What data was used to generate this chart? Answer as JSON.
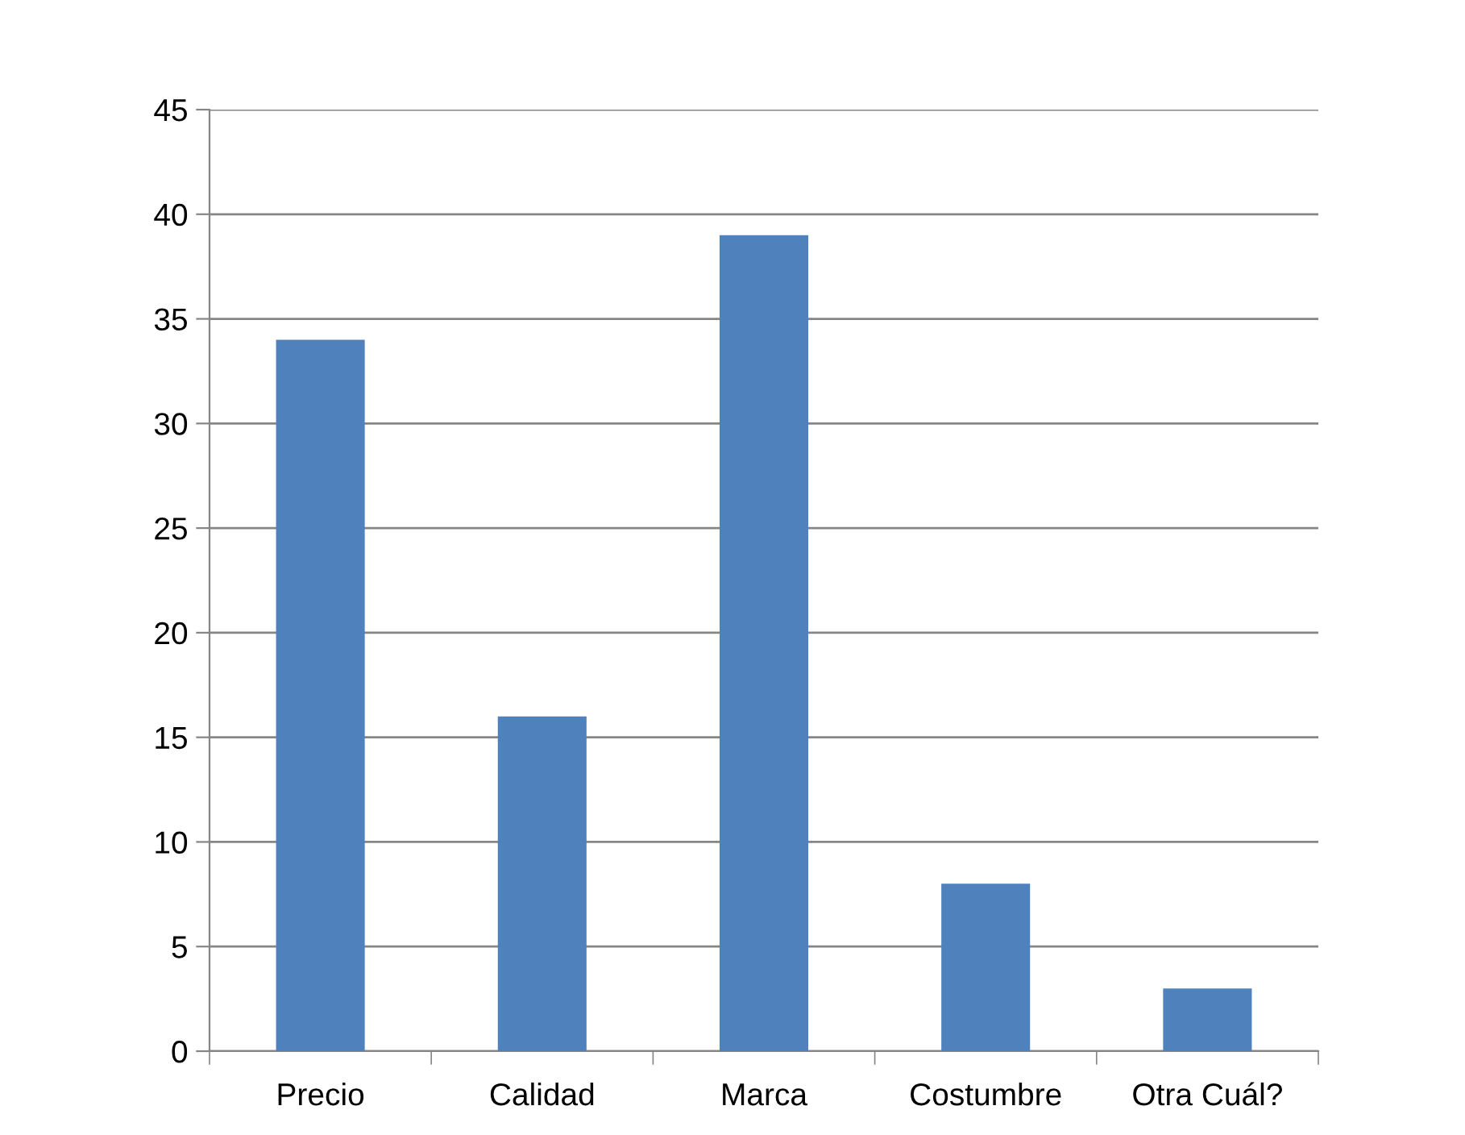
{
  "chart_data": {
    "type": "bar",
    "categories": [
      "Precio",
      "Calidad",
      "Marca",
      "Costumbre",
      "Otra Cuál?"
    ],
    "values": [
      34,
      16,
      39,
      8,
      3
    ],
    "color": "#4f81bd",
    "ylim": [
      0,
      45
    ],
    "yticks": [
      0,
      5,
      10,
      15,
      20,
      25,
      30,
      35,
      40,
      45
    ],
    "grid": "y",
    "legend": false
  }
}
